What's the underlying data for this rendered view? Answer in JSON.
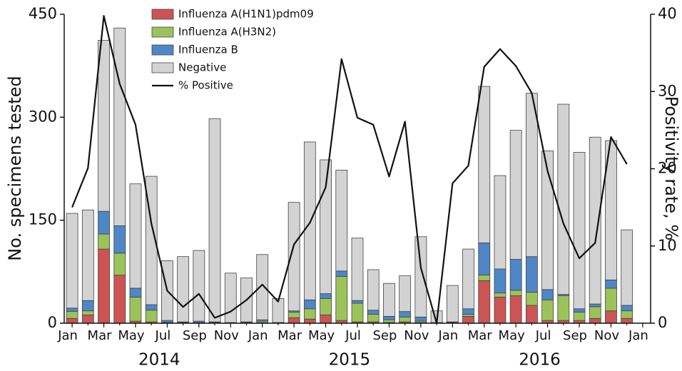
{
  "chart_data": {
    "type": "bar+line",
    "categories": [
      "Jan",
      null,
      "Mar",
      null,
      "May",
      null,
      "Jul",
      null,
      "Sep",
      null,
      "Nov",
      null,
      "Jan",
      null,
      "Mar",
      null,
      "May",
      null,
      "Jul",
      null,
      "Sep",
      null,
      "Nov",
      null,
      "Jan",
      null,
      "Mar",
      null,
      "May",
      null,
      "Jul",
      null,
      "Sep",
      null,
      "Nov",
      null,
      "Jan"
    ],
    "year_labels": [
      "2014",
      "2015",
      "2016"
    ],
    "ylabel": "No. specimens tested",
    "y2label": "Positivity rate, %",
    "ylim": [
      0,
      450
    ],
    "yticks": [
      0,
      150,
      300,
      450
    ],
    "y2lim": [
      0,
      40
    ],
    "y2ticks": [
      0,
      10,
      20,
      30,
      40
    ],
    "stacked": true,
    "series": [
      {
        "name": "Influenza A(H1N1)pdm09",
        "type": "bar",
        "color": "#cd5454",
        "values": [
          7,
          12,
          108,
          70,
          3,
          2,
          0,
          0,
          0,
          0,
          0,
          0,
          1,
          0,
          8,
          6,
          12,
          4,
          2,
          2,
          1,
          2,
          1,
          0,
          0,
          10,
          62,
          38,
          40,
          26,
          4,
          4,
          4,
          7,
          18,
          7,
          null
        ]
      },
      {
        "name": "Influenza A(H3N2)",
        "type": "bar",
        "color": "#9bc35a",
        "values": [
          10,
          6,
          22,
          32,
          35,
          17,
          1,
          1,
          1,
          1,
          0,
          1,
          2,
          0,
          8,
          15,
          24,
          64,
          27,
          11,
          4,
          7,
          2,
          0,
          1,
          3,
          8,
          6,
          8,
          19,
          30,
          36,
          12,
          17,
          33,
          11,
          null
        ]
      },
      {
        "name": "Influenza B",
        "type": "bar",
        "color": "#4f86c6",
        "values": [
          5,
          15,
          33,
          40,
          13,
          8,
          3,
          1,
          2,
          1,
          1,
          1,
          2,
          1,
          2,
          13,
          7,
          8,
          4,
          6,
          5,
          8,
          6,
          1,
          1,
          8,
          47,
          35,
          45,
          52,
          15,
          2,
          5,
          4,
          12,
          8,
          null
        ]
      },
      {
        "name": "Negative",
        "type": "bar",
        "color": "#d3d3d3",
        "values": [
          138,
          132,
          249,
          288,
          152,
          187,
          87,
          95,
          103,
          296,
          72,
          64,
          95,
          35,
          158,
          230,
          195,
          147,
          91,
          59,
          48,
          52,
          117,
          17,
          53,
          87,
          228,
          136,
          188,
          238,
          202,
          277,
          228,
          243,
          203,
          110,
          null
        ]
      },
      {
        "name": "% Positive",
        "type": "line",
        "color": "#111111",
        "axis": "y2",
        "values": [
          15,
          20.1,
          39.8,
          31,
          25.7,
          12.9,
          4.2,
          2.1,
          3.8,
          0.7,
          1.5,
          3,
          5,
          2.8,
          10.2,
          13,
          17.6,
          34.2,
          26.6,
          25.7,
          19,
          26.1,
          7.2,
          0,
          18.1,
          20.4,
          33.2,
          35.5,
          33.3,
          29.8,
          19.7,
          12.9,
          8.4,
          10.4,
          24.1,
          20.6,
          null
        ]
      }
    ]
  }
}
